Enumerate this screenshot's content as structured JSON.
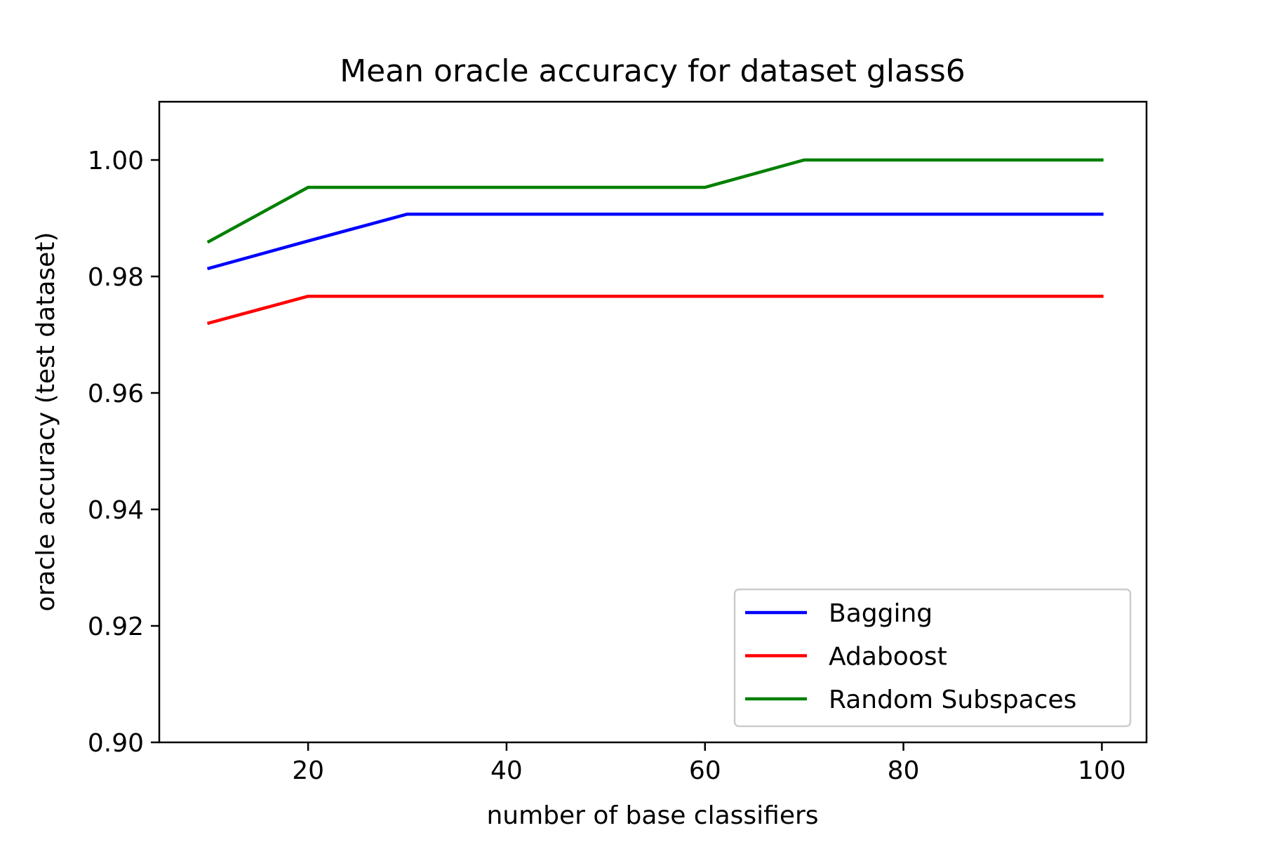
{
  "chart_data": {
    "type": "line",
    "title": "Mean oracle accuracy for dataset glass6",
    "xlabel": "number of base classifiers",
    "ylabel": "oracle accuracy (test dataset)",
    "x": [
      10,
      20,
      30,
      40,
      50,
      60,
      70,
      80,
      90,
      100
    ],
    "xlim": [
      5,
      104.5
    ],
    "ylim": [
      0.9,
      1.01
    ],
    "xticks": [
      20,
      40,
      60,
      80,
      100
    ],
    "yticks": [
      0.9,
      0.92,
      0.94,
      0.96,
      0.98,
      1.0
    ],
    "xtick_labels": [
      "20",
      "40",
      "60",
      "80",
      "100"
    ],
    "ytick_labels": [
      "0.90",
      "0.92",
      "0.94",
      "0.96",
      "0.98",
      "1.00"
    ],
    "grid": false,
    "legend_position": "lower-right",
    "series": [
      {
        "name": "Bagging",
        "color": "#0000ff",
        "values": [
          0.9814,
          0.9861,
          0.9907,
          0.9907,
          0.9907,
          0.9907,
          0.9907,
          0.9907,
          0.9907,
          0.9907
        ]
      },
      {
        "name": "Adaboost",
        "color": "#ff0000",
        "values": [
          0.972,
          0.9766,
          0.9766,
          0.9766,
          0.9766,
          0.9766,
          0.9766,
          0.9766,
          0.9766,
          0.9766
        ]
      },
      {
        "name": "Random Subspaces",
        "color": "#008000",
        "values": [
          0.986,
          0.9953,
          0.9953,
          0.9953,
          0.9953,
          0.9953,
          1.0,
          1.0,
          1.0,
          1.0
        ]
      }
    ]
  }
}
